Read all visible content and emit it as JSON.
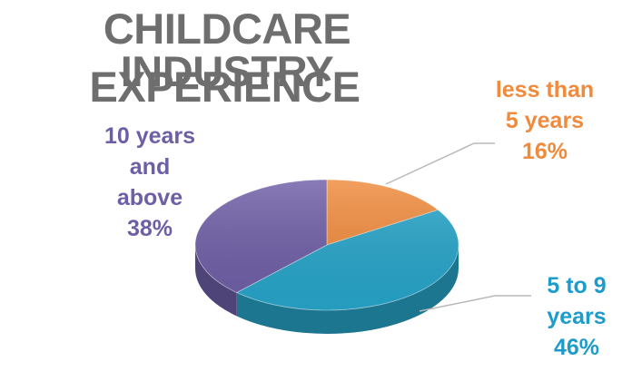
{
  "title_line1": "CHILDCARE INDUSTRY",
  "title_line2": "EXPERIENCE",
  "chart_data": {
    "type": "pie",
    "title": "CHILDCARE INDUSTRY EXPERIENCE",
    "slices": [
      {
        "label": "less than 5 years",
        "value": 16,
        "display": "16%",
        "color": "#f08a3c"
      },
      {
        "label": "5 to 9 years",
        "value": 46,
        "display": "46%",
        "color": "#27a4c8"
      },
      {
        "label": "10 years and above",
        "value": 38,
        "display": "38%",
        "color": "#6e5ea6"
      }
    ]
  },
  "labels": {
    "ten_plus": [
      "10 years",
      "and",
      "above",
      "38%"
    ],
    "less_than_five": [
      "less than",
      "5 years",
      "16%"
    ],
    "five_to_nine": [
      "5 to 9",
      "years",
      "46%"
    ]
  }
}
